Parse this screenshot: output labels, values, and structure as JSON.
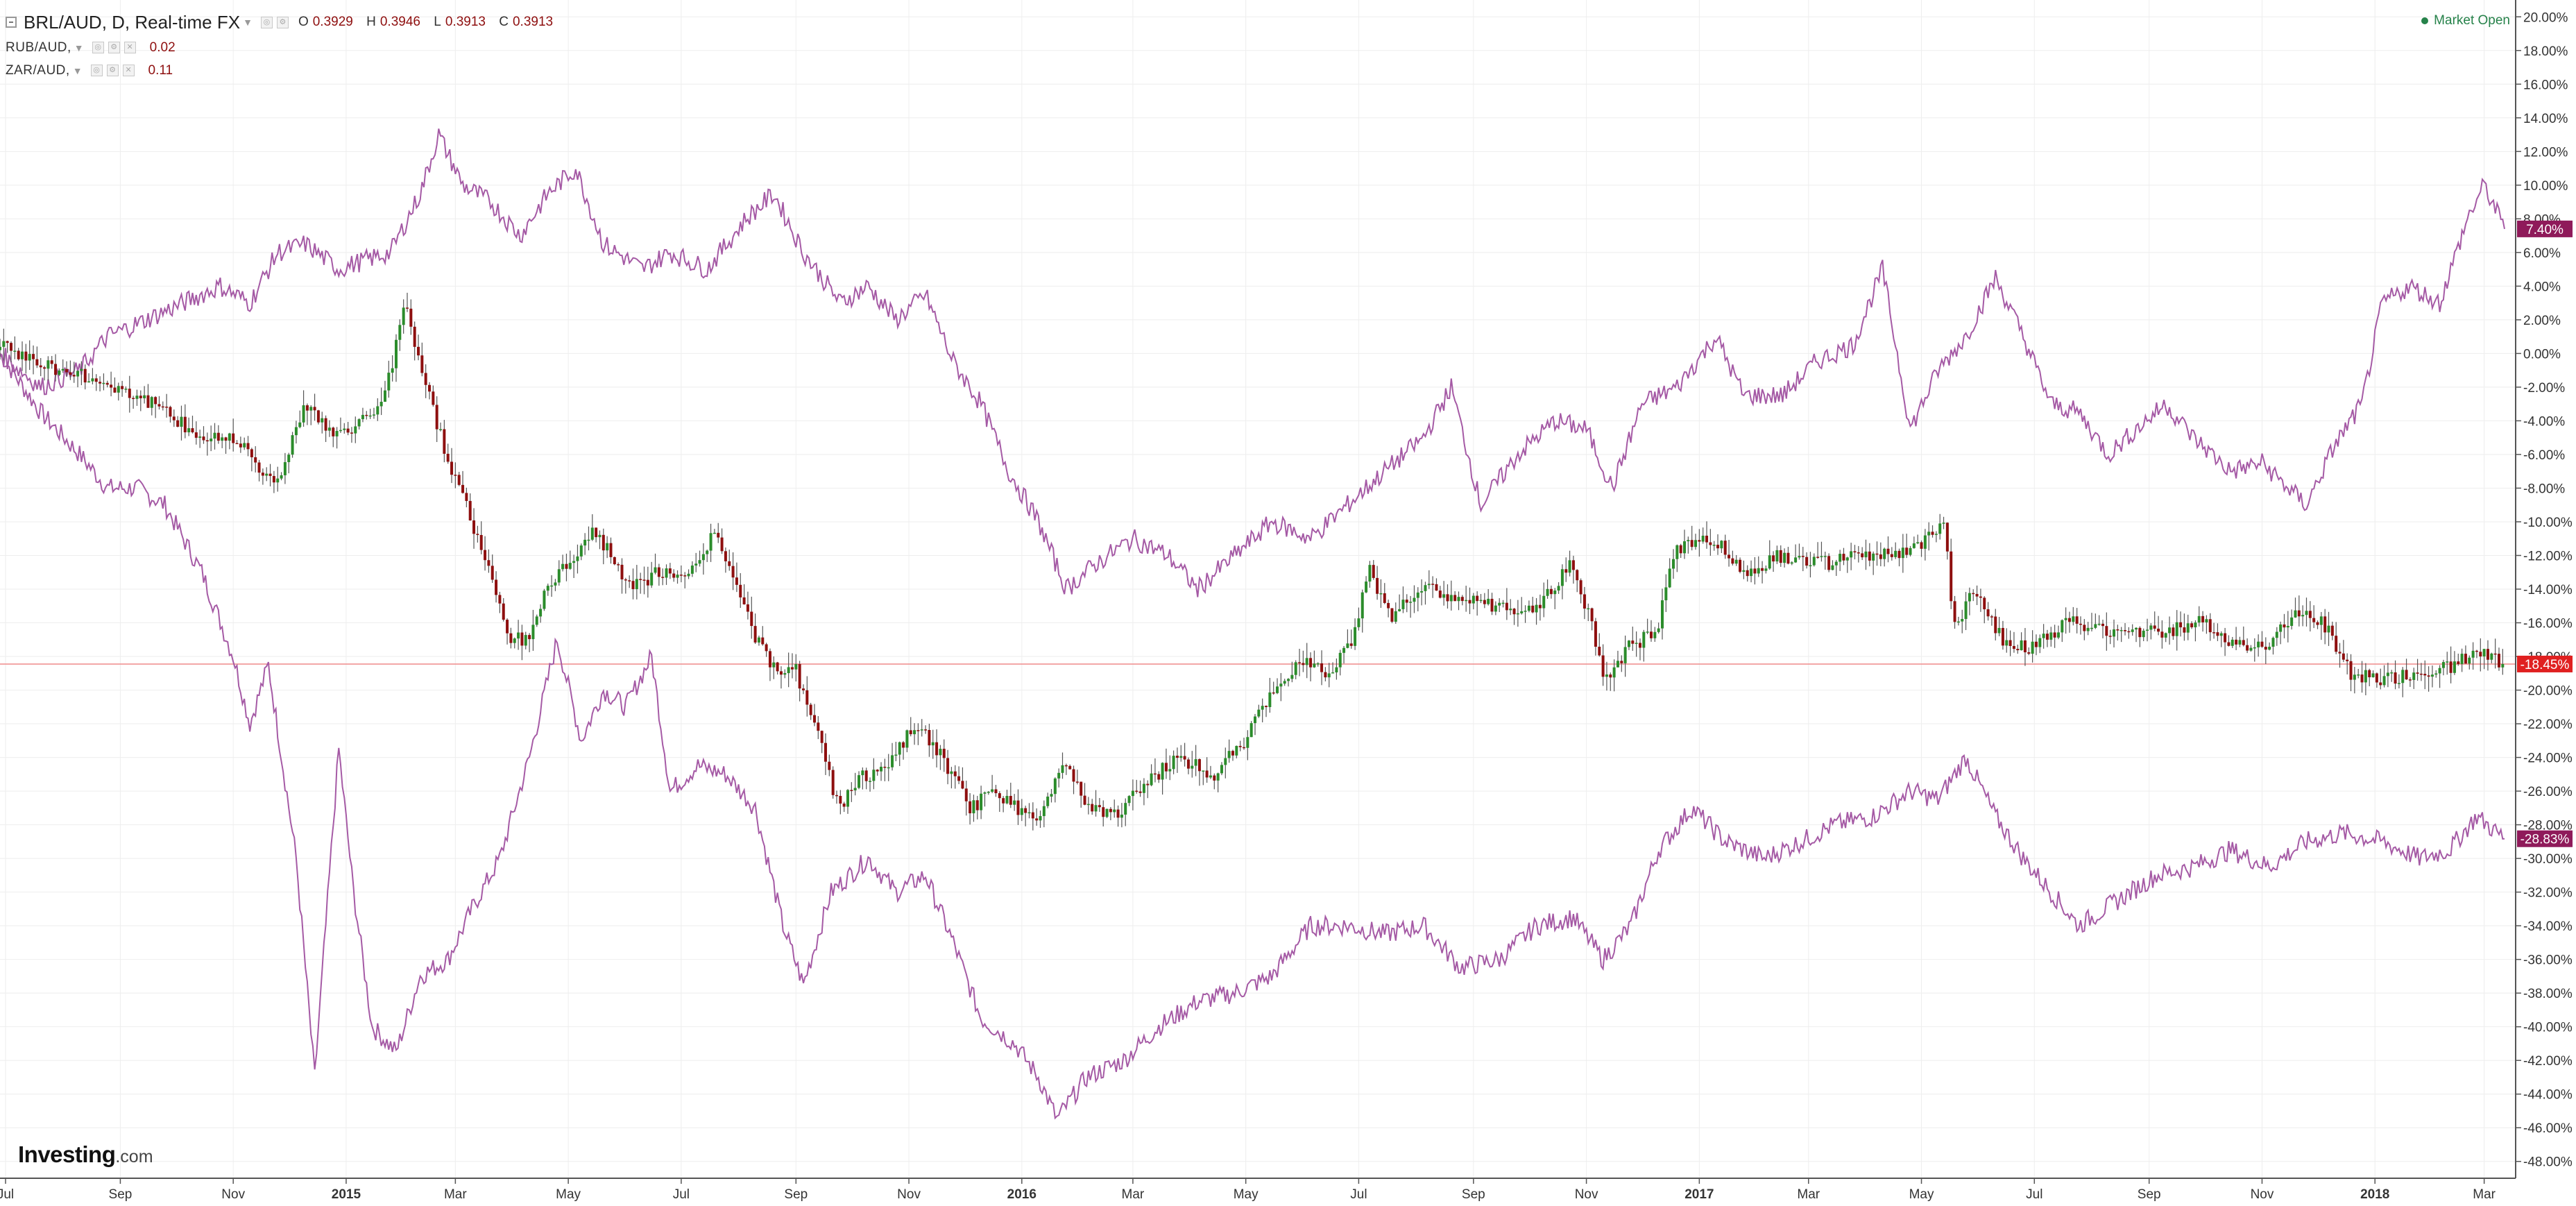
{
  "legend": {
    "main": {
      "symbol": "BRL/AUD, D, Real-time FX",
      "o_label": "O",
      "o": "0.3929",
      "h_label": "H",
      "h": "0.3946",
      "l_label": "L",
      "l": "0.3913",
      "c_label": "C",
      "c": "0.3913"
    },
    "series": [
      {
        "symbol": "RUB/AUD,",
        "value": "0.02"
      },
      {
        "symbol": "ZAR/AUD,",
        "value": "0.11"
      }
    ]
  },
  "status": {
    "market": "Market Open"
  },
  "brand": {
    "bold": "Investing",
    "suffix": ".com"
  },
  "colors": {
    "up": "#2b8c2b",
    "down": "#8e0f0f",
    "line": "#a55aa5",
    "badge": "#8f1a5a",
    "price_badge": "#e02020",
    "price_line": "#ef8a8a",
    "grid": "#eeeeee"
  },
  "chart_data": {
    "type": "line",
    "y_unit": "percent change",
    "ylim": [
      -49,
      21
    ],
    "y_ticks": [
      "20.00%",
      "18.00%",
      "16.00%",
      "14.00%",
      "12.00%",
      "10.00%",
      "8.00%",
      "6.00%",
      "4.00%",
      "2.00%",
      "0.00%",
      "-2.00%",
      "-4.00%",
      "-6.00%",
      "-8.00%",
      "-10.00%",
      "-12.00%",
      "-14.00%",
      "-16.00%",
      "-18.00%",
      "-20.00%",
      "-22.00%",
      "-24.00%",
      "-26.00%",
      "-28.00%",
      "-30.00%",
      "-32.00%",
      "-34.00%",
      "-36.00%",
      "-38.00%",
      "-40.00%",
      "-42.00%",
      "-44.00%",
      "-46.00%",
      "-48.00%"
    ],
    "x_ticks": [
      "Jul",
      "Sep",
      "Nov",
      "2015",
      "Mar",
      "May",
      "Jul",
      "Sep",
      "Nov",
      "2016",
      "Mar",
      "May",
      "Jul",
      "Sep",
      "Nov",
      "2017",
      "Mar",
      "May",
      "Jul",
      "Sep",
      "Nov",
      "2018",
      "Mar"
    ],
    "x_tick_dates": [
      "2014-07-01",
      "2014-09-01",
      "2014-11-01",
      "2015-01-01",
      "2015-03-01",
      "2015-05-01",
      "2015-07-01",
      "2015-09-01",
      "2015-11-01",
      "2016-01-01",
      "2016-03-01",
      "2016-05-01",
      "2016-07-01",
      "2016-09-01",
      "2016-11-01",
      "2017-01-01",
      "2017-03-01",
      "2017-05-01",
      "2017-07-01",
      "2017-09-01",
      "2017-11-01",
      "2018-01-01",
      "2018-03-01"
    ],
    "x_range": [
      "2014-06-28",
      "2018-03-18"
    ],
    "grid": true,
    "current_price_line": -18.45,
    "series": [
      {
        "name": "BRL/AUD",
        "style": "candlestick",
        "last_label": "-18.45%",
        "points": [
          [
            "2014-06-28",
            0.5
          ],
          [
            "2014-08-01",
            -1
          ],
          [
            "2014-09-01",
            -2
          ],
          [
            "2014-09-20",
            -3
          ],
          [
            "2014-10-15",
            -5
          ],
          [
            "2014-11-05",
            -5
          ],
          [
            "2014-11-25",
            -8
          ],
          [
            "2014-12-10",
            -3
          ],
          [
            "2014-12-28",
            -5
          ],
          [
            "2015-01-10",
            -4
          ],
          [
            "2015-01-22",
            -3
          ],
          [
            "2015-02-03",
            3
          ],
          [
            "2015-02-12",
            -1
          ],
          [
            "2015-02-25",
            -6
          ],
          [
            "2015-03-08",
            -9
          ],
          [
            "2015-03-20",
            -13
          ],
          [
            "2015-04-01",
            -17
          ],
          [
            "2015-04-10",
            -17
          ],
          [
            "2015-04-20",
            -14
          ],
          [
            "2015-05-05",
            -12
          ],
          [
            "2015-05-15",
            -10.5
          ],
          [
            "2015-05-25",
            -12
          ],
          [
            "2015-06-05",
            -14
          ],
          [
            "2015-06-20",
            -13
          ],
          [
            "2015-07-05",
            -13.5
          ],
          [
            "2015-07-20",
            -10.5
          ],
          [
            "2015-08-01",
            -14
          ],
          [
            "2015-08-12",
            -17
          ],
          [
            "2015-08-22",
            -19
          ],
          [
            "2015-09-01",
            -18.5
          ],
          [
            "2015-09-12",
            -22
          ],
          [
            "2015-09-25",
            -27
          ],
          [
            "2015-10-08",
            -25
          ],
          [
            "2015-10-20",
            -25
          ],
          [
            "2015-11-05",
            -22
          ],
          [
            "2015-11-20",
            -24
          ],
          [
            "2015-12-05",
            -27
          ],
          [
            "2015-12-20",
            -26
          ],
          [
            "2016-01-10",
            -28
          ],
          [
            "2016-01-25",
            -24
          ],
          [
            "2016-02-05",
            -26.5
          ],
          [
            "2016-02-20",
            -27.5
          ],
          [
            "2016-03-10",
            -25.5
          ],
          [
            "2016-03-25",
            -24
          ],
          [
            "2016-04-15",
            -25
          ],
          [
            "2016-05-01",
            -23
          ],
          [
            "2016-05-15",
            -20.5
          ],
          [
            "2016-06-01",
            -18
          ],
          [
            "2016-06-15",
            -19
          ],
          [
            "2016-06-28",
            -17
          ],
          [
            "2016-07-08",
            -13
          ],
          [
            "2016-07-20",
            -15.5
          ],
          [
            "2016-08-05",
            -14
          ],
          [
            "2016-08-25",
            -14.5
          ],
          [
            "2016-09-10",
            -15
          ],
          [
            "2016-09-30",
            -15.5
          ],
          [
            "2016-10-15",
            -14
          ],
          [
            "2016-10-25",
            -12.5
          ],
          [
            "2016-11-05",
            -16
          ],
          [
            "2016-11-12",
            -19.5
          ],
          [
            "2016-11-25",
            -17.5
          ],
          [
            "2016-12-10",
            -16.5
          ],
          [
            "2016-12-20",
            -11.5
          ],
          [
            "2017-01-10",
            -11
          ],
          [
            "2017-01-25",
            -13
          ],
          [
            "2017-02-15",
            -12
          ],
          [
            "2017-03-10",
            -12.5
          ],
          [
            "2017-04-01",
            -12
          ],
          [
            "2017-04-15",
            -12
          ],
          [
            "2017-05-01",
            -11.5
          ],
          [
            "2017-05-15",
            -10
          ],
          [
            "2017-05-19",
            -16.5
          ],
          [
            "2017-05-30",
            -14
          ],
          [
            "2017-06-15",
            -17
          ],
          [
            "2017-07-01",
            -17.5
          ],
          [
            "2017-07-20",
            -16
          ],
          [
            "2017-08-15",
            -16.5
          ],
          [
            "2017-09-10",
            -16.5
          ],
          [
            "2017-10-01",
            -16
          ],
          [
            "2017-10-15",
            -17
          ],
          [
            "2017-11-01",
            -17.5
          ],
          [
            "2017-11-20",
            -15.5
          ],
          [
            "2017-12-05",
            -16
          ],
          [
            "2017-12-20",
            -19
          ],
          [
            "2018-01-05",
            -19.5
          ],
          [
            "2018-01-25",
            -19
          ],
          [
            "2018-02-15",
            -18.5
          ],
          [
            "2018-03-01",
            -17.5
          ],
          [
            "2018-03-12",
            -18.45
          ]
        ]
      },
      {
        "name": "RUB/AUD",
        "style": "line",
        "last_label": "-28.83%",
        "points": [
          [
            "2014-06-28",
            0
          ],
          [
            "2014-07-20",
            -3.5
          ],
          [
            "2014-08-10",
            -6
          ],
          [
            "2014-08-25",
            -8
          ],
          [
            "2014-09-10",
            -8
          ],
          [
            "2014-09-25",
            -9
          ],
          [
            "2014-10-15",
            -13
          ],
          [
            "2014-11-01",
            -18
          ],
          [
            "2014-11-10",
            -22
          ],
          [
            "2014-11-20",
            -18.5
          ],
          [
            "2014-12-05",
            -30
          ],
          [
            "2014-12-15",
            -43
          ],
          [
            "2014-12-28",
            -23.5
          ],
          [
            "2015-01-05",
            -32
          ],
          [
            "2015-01-15",
            -40
          ],
          [
            "2015-01-28",
            -41.5
          ],
          [
            "2015-02-10",
            -37
          ],
          [
            "2015-02-25",
            -36
          ],
          [
            "2015-03-10",
            -33
          ],
          [
            "2015-03-25",
            -30
          ],
          [
            "2015-04-10",
            -24
          ],
          [
            "2015-04-25",
            -17
          ],
          [
            "2015-05-08",
            -23
          ],
          [
            "2015-05-20",
            -20
          ],
          [
            "2015-06-01",
            -21
          ],
          [
            "2015-06-15",
            -18
          ],
          [
            "2015-06-25",
            -26
          ],
          [
            "2015-07-10",
            -24.5
          ],
          [
            "2015-07-25",
            -25
          ],
          [
            "2015-08-10",
            -27
          ],
          [
            "2015-08-25",
            -34
          ],
          [
            "2015-09-05",
            -37.5
          ],
          [
            "2015-09-20",
            -32
          ],
          [
            "2015-10-10",
            -30
          ],
          [
            "2015-10-25",
            -32
          ],
          [
            "2015-11-10",
            -31
          ],
          [
            "2015-11-25",
            -35
          ],
          [
            "2015-12-10",
            -39.5
          ],
          [
            "2015-12-28",
            -41
          ],
          [
            "2016-01-10",
            -43
          ],
          [
            "2016-01-20",
            -45.5
          ],
          [
            "2016-02-05",
            -43
          ],
          [
            "2016-02-25",
            -42
          ],
          [
            "2016-03-15",
            -40
          ],
          [
            "2016-04-05",
            -38.5
          ],
          [
            "2016-04-25",
            -38
          ],
          [
            "2016-05-15",
            -37
          ],
          [
            "2016-06-05",
            -34
          ],
          [
            "2016-06-25",
            -34
          ],
          [
            "2016-07-15",
            -34.5
          ],
          [
            "2016-08-05",
            -34
          ],
          [
            "2016-08-25",
            -36.5
          ],
          [
            "2016-09-15",
            -36
          ],
          [
            "2016-10-05",
            -34
          ],
          [
            "2016-10-25",
            -33.5
          ],
          [
            "2016-11-10",
            -36
          ],
          [
            "2016-11-25",
            -34
          ],
          [
            "2016-12-10",
            -29.5
          ],
          [
            "2016-12-28",
            -27
          ],
          [
            "2017-01-15",
            -29
          ],
          [
            "2017-02-05",
            -30
          ],
          [
            "2017-02-25",
            -29
          ],
          [
            "2017-03-15",
            -28
          ],
          [
            "2017-04-05",
            -27.5
          ],
          [
            "2017-04-25",
            -26
          ],
          [
            "2017-05-10",
            -26.5
          ],
          [
            "2017-05-25",
            -24
          ],
          [
            "2017-06-10",
            -27.5
          ],
          [
            "2017-06-25",
            -30
          ],
          [
            "2017-07-10",
            -32
          ],
          [
            "2017-07-25",
            -34
          ],
          [
            "2017-08-15",
            -32.5
          ],
          [
            "2017-09-05",
            -31
          ],
          [
            "2017-09-25",
            -30.5
          ],
          [
            "2017-10-15",
            -29.5
          ],
          [
            "2017-11-05",
            -30.5
          ],
          [
            "2017-11-25",
            -29
          ],
          [
            "2017-12-15",
            -28.5
          ],
          [
            "2018-01-05",
            -29
          ],
          [
            "2018-01-25",
            -30
          ],
          [
            "2018-02-10",
            -29.5
          ],
          [
            "2018-02-25",
            -27.5
          ],
          [
            "2018-03-12",
            -28.83
          ]
        ]
      },
      {
        "name": "ZAR/AUD",
        "style": "line",
        "last_label": "7.40%",
        "points": [
          [
            "2014-06-28",
            0
          ],
          [
            "2014-07-20",
            -2
          ],
          [
            "2014-08-10",
            -1
          ],
          [
            "2014-08-25",
            1
          ],
          [
            "2014-09-15",
            2
          ],
          [
            "2014-10-05",
            3
          ],
          [
            "2014-10-25",
            4
          ],
          [
            "2014-11-10",
            3
          ],
          [
            "2014-11-25",
            6
          ],
          [
            "2014-12-10",
            6.5
          ],
          [
            "2014-12-28",
            5
          ],
          [
            "2015-01-10",
            5.5
          ],
          [
            "2015-01-25",
            6
          ],
          [
            "2015-02-10",
            9.5
          ],
          [
            "2015-02-20",
            13
          ],
          [
            "2015-03-05",
            10
          ],
          [
            "2015-03-20",
            9
          ],
          [
            "2015-04-05",
            7
          ],
          [
            "2015-04-20",
            9.5
          ],
          [
            "2015-05-05",
            11
          ],
          [
            "2015-05-20",
            6.5
          ],
          [
            "2015-06-10",
            5
          ],
          [
            "2015-06-25",
            6
          ],
          [
            "2015-07-15",
            5
          ],
          [
            "2015-08-05",
            8
          ],
          [
            "2015-08-20",
            9.5
          ],
          [
            "2015-09-05",
            6
          ],
          [
            "2015-09-25",
            3
          ],
          [
            "2015-10-10",
            4
          ],
          [
            "2015-10-25",
            2
          ],
          [
            "2015-11-10",
            3.5
          ],
          [
            "2015-11-25",
            -0.5
          ],
          [
            "2015-12-10",
            -3
          ],
          [
            "2015-12-25",
            -7
          ],
          [
            "2016-01-10",
            -10
          ],
          [
            "2016-01-25",
            -14
          ],
          [
            "2016-02-10",
            -12.5
          ],
          [
            "2016-03-01",
            -11
          ],
          [
            "2016-03-20",
            -12
          ],
          [
            "2016-04-05",
            -14
          ],
          [
            "2016-04-25",
            -12
          ],
          [
            "2016-05-15",
            -10
          ],
          [
            "2016-06-05",
            -11
          ],
          [
            "2016-06-25",
            -9
          ],
          [
            "2016-07-15",
            -7
          ],
          [
            "2016-08-05",
            -5
          ],
          [
            "2016-08-20",
            -2
          ],
          [
            "2016-09-05",
            -9
          ],
          [
            "2016-09-25",
            -6
          ],
          [
            "2016-10-15",
            -4
          ],
          [
            "2016-11-01",
            -4.5
          ],
          [
            "2016-11-15",
            -8
          ],
          [
            "2016-12-01",
            -3
          ],
          [
            "2016-12-20",
            -2
          ],
          [
            "2017-01-10",
            1
          ],
          [
            "2017-01-25",
            -2.5
          ],
          [
            "2017-02-15",
            -2.5
          ],
          [
            "2017-03-05",
            -0.5
          ],
          [
            "2017-03-25",
            0.5
          ],
          [
            "2017-04-10",
            5
          ],
          [
            "2017-04-25",
            -4.5
          ],
          [
            "2017-05-10",
            -1
          ],
          [
            "2017-05-25",
            1
          ],
          [
            "2017-06-10",
            4.5
          ],
          [
            "2017-06-25",
            1
          ],
          [
            "2017-07-10",
            -3
          ],
          [
            "2017-07-25",
            -3.5
          ],
          [
            "2017-08-10",
            -6
          ],
          [
            "2017-08-25",
            -4.5
          ],
          [
            "2017-09-10",
            -3
          ],
          [
            "2017-09-25",
            -5
          ],
          [
            "2017-10-15",
            -7
          ],
          [
            "2017-11-01",
            -6.5
          ],
          [
            "2017-11-15",
            -8
          ],
          [
            "2017-11-25",
            -9
          ],
          [
            "2017-12-10",
            -5.5
          ],
          [
            "2017-12-25",
            -3
          ],
          [
            "2018-01-05",
            3
          ],
          [
            "2018-01-20",
            4
          ],
          [
            "2018-02-05",
            3
          ],
          [
            "2018-02-20",
            8
          ],
          [
            "2018-03-01",
            10
          ],
          [
            "2018-03-12",
            7.4
          ]
        ]
      }
    ]
  }
}
